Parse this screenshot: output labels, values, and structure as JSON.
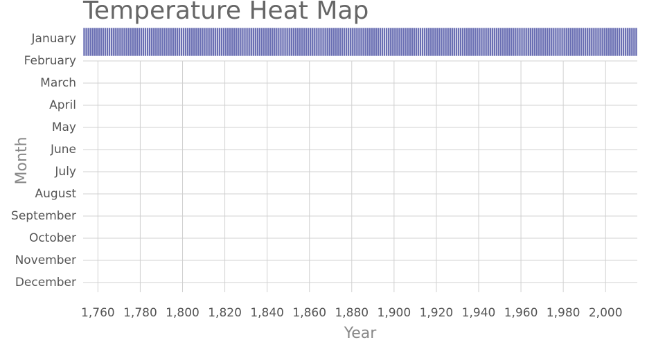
{
  "chart_data": {
    "type": "heatmap",
    "title": "Temperature Heat Map",
    "x_label": "Year",
    "y_label": "Month",
    "categories": [
      "January",
      "February",
      "March",
      "April",
      "May",
      "June",
      "July",
      "August",
      "September",
      "October",
      "November",
      "December"
    ],
    "x": [
      1753,
      1754,
      1755,
      1756,
      1757,
      1758,
      1759,
      1760,
      1761,
      1762,
      1763,
      1764,
      1765,
      1766,
      1767,
      1768,
      1769,
      1770,
      1771,
      1772,
      1773,
      1774,
      1775,
      1776,
      1777,
      1778,
      1779,
      1780,
      1781,
      1782,
      1783,
      1784,
      1785,
      1786,
      1787,
      1788,
      1789,
      1790,
      1791,
      1792,
      1793,
      1794,
      1795,
      1796,
      1797,
      1798,
      1799,
      1800,
      1801,
      1802,
      1803,
      1804,
      1805,
      1806,
      1807,
      1808,
      1809,
      1810,
      1811,
      1812,
      1813,
      1814,
      1815,
      1816,
      1817,
      1818,
      1819,
      1820,
      1821,
      1822,
      1823,
      1824,
      1825,
      1826,
      1827,
      1828,
      1829,
      1830,
      1831,
      1832,
      1833,
      1834,
      1835,
      1836,
      1837,
      1838,
      1839,
      1840,
      1841,
      1842,
      1843,
      1844,
      1845,
      1846,
      1847,
      1848,
      1849,
      1850,
      1851,
      1852,
      1853,
      1854,
      1855,
      1856,
      1857,
      1858,
      1859,
      1860,
      1861,
      1862,
      1863,
      1864,
      1865,
      1866,
      1867,
      1868,
      1869,
      1870,
      1871,
      1872,
      1873,
      1874,
      1875,
      1876,
      1877,
      1878,
      1879,
      1880,
      1881,
      1882,
      1883,
      1884,
      1885,
      1886,
      1887,
      1888,
      1889,
      1890,
      1891,
      1892,
      1893,
      1894,
      1895,
      1896,
      1897,
      1898,
      1899,
      1900,
      1901,
      1902,
      1903,
      1904,
      1905,
      1906,
      1907,
      1908,
      1909,
      1910,
      1911,
      1912,
      1913,
      1914,
      1915,
      1916,
      1917,
      1918,
      1919,
      1920,
      1921,
      1922,
      1923,
      1924,
      1925,
      1926,
      1927,
      1928,
      1929,
      1930,
      1931,
      1932,
      1933,
      1934,
      1935,
      1936,
      1937,
      1938,
      1939,
      1940,
      1941,
      1942,
      1943,
      1944,
      1945,
      1946,
      1947,
      1948,
      1949,
      1950,
      1951,
      1952,
      1953,
      1954,
      1955,
      1956,
      1957,
      1958,
      1959,
      1960,
      1961,
      1962,
      1963,
      1964,
      1965,
      1966,
      1967,
      1968,
      1969,
      1970,
      1971,
      1972,
      1973,
      1974,
      1975,
      1976,
      1977,
      1978,
      1979,
      1980,
      1981,
      1982,
      1983,
      1984,
      1985,
      1986,
      1987,
      1988,
      1989,
      1990,
      1991,
      1992,
      1993,
      1994,
      1995,
      1996,
      1997,
      1998,
      1999,
      2000,
      2001,
      2002,
      2003,
      2004,
      2005,
      2006,
      2007,
      2008,
      2009,
      2010,
      2011,
      2012,
      2013,
      2014
    ],
    "color": "#6a6fb3",
    "xlim": [
      1753,
      2015
    ],
    "xticks": [
      {
        "value": 1760,
        "label": "1,760"
      },
      {
        "value": 1780,
        "label": "1,780"
      },
      {
        "value": 1800,
        "label": "1,800"
      },
      {
        "value": 1820,
        "label": "1,820"
      },
      {
        "value": 1840,
        "label": "1,840"
      },
      {
        "value": 1860,
        "label": "1,860"
      },
      {
        "value": 1880,
        "label": "1,880"
      },
      {
        "value": 1900,
        "label": "1,900"
      },
      {
        "value": 1920,
        "label": "1,920"
      },
      {
        "value": 1940,
        "label": "1,940"
      },
      {
        "value": 1960,
        "label": "1,960"
      },
      {
        "value": 1980,
        "label": "1,980"
      },
      {
        "value": 2000,
        "label": "2,000"
      }
    ],
    "grid": true
  }
}
